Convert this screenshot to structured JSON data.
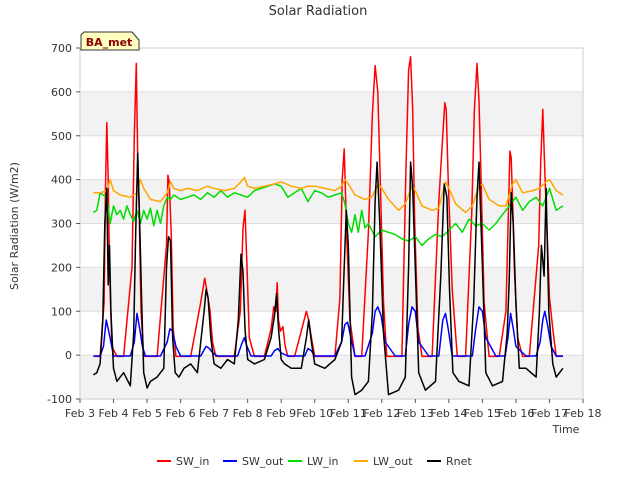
{
  "chart_data": {
    "type": "line",
    "title": "Solar Radiation",
    "xlabel": "Time",
    "ylabel": "Solar Radiation (W/m2)",
    "ylim": [
      -100,
      700
    ],
    "yticks": [
      -100,
      0,
      100,
      200,
      300,
      400,
      500,
      600,
      700
    ],
    "xlim": [
      3,
      18
    ],
    "xticks": [
      3,
      4,
      5,
      6,
      7,
      8,
      9,
      10,
      11,
      12,
      13,
      14,
      15,
      16,
      17,
      18
    ],
    "xtick_labels": [
      "Feb 3",
      "Feb 4",
      "Feb 5",
      "Feb 6",
      "Feb 7",
      "Feb 8",
      "Feb 9",
      "Feb 10",
      "Feb 11",
      "Feb 12",
      "Feb 13",
      "Feb 14",
      "Feb 15",
      "Feb 16",
      "Feb 17",
      "Feb 18"
    ],
    "grid": "horizontal bands",
    "legend_position": "bottom",
    "annotation": "BA_met",
    "series": [
      {
        "name": "SW_in",
        "color": "#ff0000",
        "x": [
          3.4,
          3.6,
          3.72,
          3.76,
          3.8,
          3.84,
          3.88,
          3.95,
          4.1,
          4.3,
          4.55,
          4.62,
          4.68,
          4.72,
          4.76,
          4.82,
          4.9,
          5.1,
          5.3,
          5.58,
          5.62,
          5.66,
          5.72,
          5.78,
          5.86,
          6.05,
          6.3,
          6.6,
          6.72,
          6.8,
          6.88,
          6.95,
          7.05,
          7.3,
          7.6,
          7.78,
          7.86,
          7.92,
          7.98,
          8.05,
          8.2,
          8.5,
          8.7,
          8.78,
          8.84,
          8.88,
          8.92,
          8.98,
          9.05,
          9.12,
          9.2,
          9.4,
          9.65,
          9.75,
          9.82,
          9.9,
          10.0,
          10.3,
          10.6,
          10.75,
          10.82,
          10.88,
          10.95,
          11.05,
          11.2,
          11.4,
          11.6,
          11.72,
          11.8,
          11.88,
          11.96,
          12.05,
          12.15,
          12.3,
          12.6,
          12.72,
          12.8,
          12.86,
          12.92,
          12.98,
          13.08,
          13.2,
          13.5,
          13.7,
          13.8,
          13.88,
          13.92,
          13.98,
          14.1,
          14.25,
          14.5,
          14.68,
          14.76,
          14.84,
          14.9,
          14.96,
          15.05,
          15.2,
          15.5,
          15.7,
          15.76,
          15.82,
          15.86,
          15.9,
          15.95,
          16.05,
          16.2,
          16.4,
          16.68,
          16.74,
          16.8,
          16.86,
          16.92,
          17.0,
          17.1,
          17.2,
          17.4
        ],
        "y": [
          -3,
          -3,
          120,
          380,
          530,
          400,
          200,
          20,
          -3,
          -3,
          200,
          500,
          665,
          450,
          350,
          100,
          -3,
          -3,
          -3,
          250,
          410,
          395,
          280,
          60,
          -3,
          -3,
          -3,
          120,
          175,
          140,
          100,
          30,
          -3,
          -3,
          -3,
          100,
          290,
          330,
          200,
          40,
          -3,
          -3,
          60,
          110,
          100,
          165,
          80,
          55,
          65,
          20,
          -3,
          -3,
          70,
          100,
          80,
          40,
          -3,
          -3,
          -3,
          130,
          400,
          470,
          280,
          80,
          -3,
          -3,
          280,
          550,
          660,
          600,
          380,
          120,
          -3,
          -3,
          -3,
          420,
          650,
          680,
          560,
          300,
          60,
          -3,
          -3,
          350,
          480,
          575,
          560,
          400,
          150,
          -3,
          -3,
          320,
          560,
          665,
          580,
          400,
          120,
          -3,
          -3,
          100,
          280,
          465,
          450,
          350,
          200,
          40,
          -3,
          -3,
          250,
          440,
          560,
          420,
          300,
          130,
          60,
          -3,
          -3
        ]
      },
      {
        "name": "SW_out",
        "color": "#0000ff",
        "x": [
          3.4,
          3.6,
          3.7,
          3.78,
          3.84,
          3.92,
          4.0,
          4.2,
          4.5,
          4.62,
          4.7,
          4.78,
          4.86,
          4.95,
          5.1,
          5.4,
          5.6,
          5.68,
          5.76,
          5.86,
          6.0,
          6.3,
          6.6,
          6.76,
          6.86,
          6.96,
          7.1,
          7.4,
          7.7,
          7.82,
          7.9,
          7.98,
          8.1,
          8.4,
          8.7,
          8.8,
          8.9,
          9.0,
          9.2,
          9.5,
          9.7,
          9.8,
          9.9,
          10.0,
          10.3,
          10.6,
          10.8,
          10.9,
          10.98,
          11.08,
          11.2,
          11.5,
          11.72,
          11.8,
          11.88,
          11.98,
          12.1,
          12.4,
          12.7,
          12.8,
          12.9,
          13.0,
          13.1,
          13.4,
          13.7,
          13.82,
          13.9,
          13.98,
          14.1,
          14.4,
          14.7,
          14.8,
          14.9,
          15.0,
          15.1,
          15.4,
          15.68,
          15.76,
          15.84,
          15.92,
          16.0,
          16.3,
          16.6,
          16.72,
          16.8,
          16.86,
          16.94,
          17.05,
          17.2,
          17.4
        ],
        "y": [
          -2,
          -2,
          20,
          80,
          60,
          30,
          -2,
          -2,
          -2,
          30,
          95,
          60,
          20,
          -2,
          -2,
          -2,
          30,
          60,
          55,
          20,
          -2,
          -2,
          -2,
          20,
          15,
          5,
          -2,
          -2,
          -2,
          25,
          40,
          20,
          -2,
          -2,
          -2,
          10,
          15,
          5,
          -2,
          -2,
          -2,
          15,
          10,
          -2,
          -2,
          -2,
          30,
          70,
          75,
          40,
          -2,
          -2,
          50,
          100,
          110,
          90,
          30,
          -2,
          -2,
          70,
          110,
          100,
          30,
          -2,
          -2,
          80,
          95,
          60,
          -2,
          -2,
          -2,
          60,
          110,
          100,
          40,
          -2,
          -2,
          40,
          95,
          60,
          20,
          -2,
          -2,
          30,
          80,
          100,
          70,
          20,
          -2,
          -2
        ]
      },
      {
        "name": "LW_in",
        "color": "#00dd00",
        "x": [
          3.4,
          3.5,
          3.6,
          3.8,
          3.9,
          4.0,
          4.1,
          4.2,
          4.3,
          4.4,
          4.5,
          4.6,
          4.7,
          4.8,
          4.9,
          5.0,
          5.1,
          5.2,
          5.3,
          5.4,
          5.5,
          5.6,
          5.7,
          5.8,
          6.0,
          6.2,
          6.4,
          6.6,
          6.8,
          7.0,
          7.2,
          7.4,
          7.6,
          7.8,
          8.0,
          8.2,
          8.4,
          8.6,
          8.8,
          9.0,
          9.2,
          9.4,
          9.6,
          9.8,
          10.0,
          10.2,
          10.4,
          10.6,
          10.8,
          10.9,
          11.0,
          11.1,
          11.2,
          11.3,
          11.4,
          11.5,
          11.6,
          11.8,
          12.0,
          12.2,
          12.4,
          12.6,
          12.8,
          13.0,
          13.2,
          13.4,
          13.6,
          13.8,
          14.0,
          14.2,
          14.4,
          14.6,
          14.8,
          15.0,
          15.2,
          15.4,
          15.6,
          15.8,
          16.0,
          16.2,
          16.4,
          16.6,
          16.8,
          17.0,
          17.2,
          17.4
        ],
        "y": [
          325,
          330,
          370,
          360,
          300,
          340,
          320,
          330,
          310,
          340,
          320,
          305,
          330,
          300,
          330,
          310,
          335,
          295,
          330,
          300,
          340,
          360,
          355,
          365,
          355,
          360,
          365,
          355,
          370,
          360,
          375,
          360,
          370,
          365,
          360,
          375,
          380,
          385,
          390,
          385,
          360,
          370,
          380,
          350,
          375,
          370,
          360,
          365,
          370,
          345,
          300,
          280,
          320,
          280,
          330,
          290,
          300,
          270,
          285,
          280,
          275,
          265,
          260,
          270,
          250,
          265,
          275,
          270,
          285,
          300,
          280,
          310,
          295,
          300,
          285,
          300,
          320,
          340,
          360,
          330,
          350,
          360,
          340,
          380,
          330,
          340
        ]
      },
      {
        "name": "LW_out",
        "color": "#ffa500",
        "x": [
          3.4,
          3.6,
          3.8,
          3.9,
          4.0,
          4.2,
          4.5,
          4.7,
          4.8,
          4.9,
          5.1,
          5.4,
          5.6,
          5.7,
          5.8,
          6.0,
          6.2,
          6.5,
          6.8,
          7.0,
          7.3,
          7.6,
          7.8,
          7.9,
          8.0,
          8.2,
          8.5,
          8.8,
          9.0,
          9.3,
          9.6,
          9.8,
          10.0,
          10.3,
          10.6,
          10.8,
          10.9,
          11.0,
          11.2,
          11.5,
          11.7,
          11.9,
          12.0,
          12.2,
          12.5,
          12.7,
          12.9,
          13.0,
          13.2,
          13.5,
          13.7,
          13.9,
          14.0,
          14.2,
          14.5,
          14.7,
          14.9,
          15.0,
          15.2,
          15.5,
          15.7,
          15.9,
          16.0,
          16.2,
          16.5,
          16.7,
          16.9,
          17.0,
          17.2,
          17.4
        ],
        "y": [
          370,
          370,
          375,
          400,
          375,
          365,
          360,
          370,
          400,
          380,
          355,
          350,
          370,
          395,
          380,
          375,
          380,
          375,
          385,
          380,
          375,
          380,
          395,
          405,
          385,
          380,
          385,
          390,
          395,
          385,
          380,
          385,
          385,
          380,
          375,
          385,
          400,
          390,
          365,
          355,
          360,
          390,
          380,
          355,
          330,
          345,
          385,
          375,
          340,
          330,
          335,
          395,
          380,
          345,
          325,
          340,
          385,
          390,
          355,
          340,
          340,
          390,
          400,
          370,
          375,
          380,
          395,
          400,
          375,
          365
        ]
      },
      {
        "name": "Rnet",
        "color": "#000000",
        "x": [
          3.4,
          3.5,
          3.6,
          3.68,
          3.74,
          3.8,
          3.84,
          3.88,
          3.92,
          4.0,
          4.1,
          4.2,
          4.3,
          4.5,
          4.6,
          4.66,
          4.72,
          4.78,
          4.84,
          4.9,
          5.0,
          5.1,
          5.3,
          5.5,
          5.58,
          5.64,
          5.7,
          5.76,
          5.84,
          5.95,
          6.1,
          6.3,
          6.5,
          6.7,
          6.76,
          6.82,
          6.9,
          7.0,
          7.2,
          7.4,
          7.6,
          7.72,
          7.8,
          7.86,
          7.92,
          8.0,
          8.2,
          8.5,
          8.7,
          8.8,
          8.86,
          8.92,
          9.0,
          9.1,
          9.3,
          9.6,
          9.75,
          9.82,
          9.9,
          10.0,
          10.3,
          10.6,
          10.8,
          10.88,
          10.94,
          11.0,
          11.1,
          11.2,
          11.4,
          11.6,
          11.72,
          11.8,
          11.86,
          11.94,
          12.05,
          12.2,
          12.5,
          12.7,
          12.8,
          12.86,
          12.92,
          13.0,
          13.1,
          13.3,
          13.6,
          13.76,
          13.86,
          13.94,
          14.02,
          14.12,
          14.3,
          14.6,
          14.74,
          14.84,
          14.9,
          14.98,
          15.1,
          15.3,
          15.6,
          15.74,
          15.8,
          15.86,
          15.92,
          16.0,
          16.1,
          16.3,
          16.6,
          16.7,
          16.76,
          16.84,
          16.9,
          16.98,
          17.1,
          17.2,
          17.4
        ],
        "y": [
          -45,
          -40,
          -20,
          80,
          300,
          380,
          160,
          250,
          100,
          -30,
          -60,
          -50,
          -40,
          -70,
          50,
          280,
          460,
          300,
          120,
          -40,
          -75,
          -60,
          -50,
          -30,
          200,
          270,
          260,
          40,
          -40,
          -50,
          -30,
          -20,
          -40,
          100,
          150,
          130,
          40,
          -20,
          -30,
          -10,
          -20,
          80,
          230,
          190,
          60,
          -10,
          -20,
          -10,
          40,
          90,
          140,
          60,
          -10,
          -20,
          -30,
          -30,
          40,
          80,
          30,
          -20,
          -30,
          -10,
          30,
          200,
          330,
          250,
          -50,
          -90,
          -80,
          -60,
          100,
          350,
          440,
          300,
          50,
          -90,
          -80,
          -50,
          200,
          440,
          380,
          200,
          -40,
          -80,
          -60,
          180,
          390,
          360,
          150,
          -40,
          -60,
          -70,
          120,
          360,
          440,
          250,
          -40,
          -70,
          -60,
          50,
          170,
          370,
          300,
          120,
          -30,
          -30,
          -50,
          100,
          250,
          180,
          380,
          100,
          -20,
          -50,
          -30
        ]
      }
    ]
  }
}
